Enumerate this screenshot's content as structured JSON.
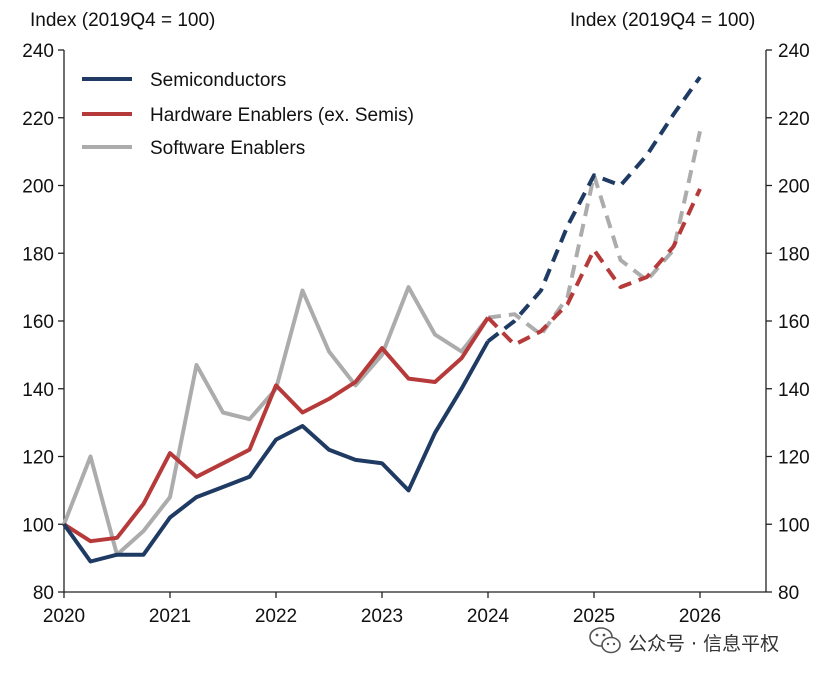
{
  "chart_data": {
    "type": "line",
    "title": "",
    "ylabel_left": "Index (2019Q4 = 100)",
    "ylabel_right": "Index (2019Q4 = 100)",
    "xlim": [
      2020,
      2026.7
    ],
    "ylim": [
      80,
      240
    ],
    "x_ticks": [
      2020,
      2021,
      2022,
      2023,
      2024,
      2025,
      2026
    ],
    "x_tick_labels": [
      "2020",
      "2021",
      "2022",
      "2023",
      "2024",
      "2025",
      "2026"
    ],
    "y_ticks": [
      80,
      100,
      120,
      140,
      160,
      180,
      200,
      220,
      240
    ],
    "y_tick_labels": [
      "80",
      "100",
      "120",
      "140",
      "160",
      "180",
      "200",
      "220",
      "240"
    ],
    "grid": false,
    "legend_position": "top-left",
    "note": "Solid lines are actual values; dashed lines are projections.",
    "series": [
      {
        "name": "Semiconductors",
        "color": "#1f3b63",
        "actual": {
          "x": [
            2020,
            2020.25,
            2020.5,
            2020.75,
            2021,
            2021.25,
            2021.5,
            2021.75,
            2022,
            2022.25,
            2022.5,
            2022.75,
            2023,
            2023.25,
            2023.5,
            2023.75,
            2024
          ],
          "y": [
            100,
            89,
            91,
            91,
            102,
            108,
            111,
            114,
            125,
            129,
            122,
            119,
            118,
            110,
            127,
            140,
            154
          ]
        },
        "projected": {
          "x": [
            2024,
            2024.25,
            2024.5,
            2024.75,
            2025,
            2025.25,
            2025.5,
            2025.75,
            2026
          ],
          "y": [
            154,
            160,
            169,
            188,
            203,
            200,
            209,
            221,
            232
          ]
        }
      },
      {
        "name": "Hardware Enablers (ex. Semis)",
        "color": "#b73a3a",
        "actual": {
          "x": [
            2020,
            2020.25,
            2020.5,
            2020.75,
            2021,
            2021.25,
            2021.5,
            2021.75,
            2022,
            2022.25,
            2022.5,
            2022.75,
            2023,
            2023.25,
            2023.5,
            2023.75,
            2024
          ],
          "y": [
            100,
            95,
            96,
            106,
            121,
            114,
            118,
            122,
            141,
            133,
            137,
            142,
            152,
            143,
            142,
            149,
            161
          ]
        },
        "projected": {
          "x": [
            2024,
            2024.25,
            2024.5,
            2024.75,
            2025,
            2025.25,
            2025.5,
            2025.75,
            2026
          ],
          "y": [
            161,
            153,
            157,
            165,
            181,
            170,
            173,
            182,
            199
          ]
        }
      },
      {
        "name": "Software Enablers",
        "color": "#acacac",
        "actual": {
          "x": [
            2020,
            2020.25,
            2020.5,
            2020.75,
            2021,
            2021.25,
            2021.5,
            2021.75,
            2022,
            2022.25,
            2022.5,
            2022.75,
            2023,
            2023.25,
            2023.5,
            2023.75,
            2024
          ],
          "y": [
            100,
            120,
            91,
            98,
            108,
            147,
            133,
            131,
            140,
            169,
            151,
            141,
            150,
            170,
            156,
            151,
            161
          ]
        },
        "projected": {
          "x": [
            2024,
            2024.25,
            2024.5,
            2024.75,
            2025,
            2025.25,
            2025.5,
            2025.75,
            2026
          ],
          "y": [
            161,
            162,
            156,
            167,
            203,
            178,
            172,
            181,
            216
          ]
        }
      }
    ]
  },
  "watermark": {
    "text": "公众号 · 信息平权",
    "icon": "wechat-icon"
  }
}
